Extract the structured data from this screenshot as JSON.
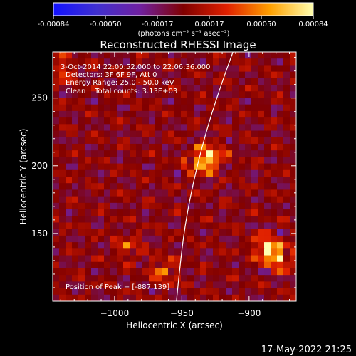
{
  "colorbar": {
    "tick_labels": [
      "-0.00084",
      "-0.00050",
      "-0.00017",
      "0.00017",
      "0.00050",
      "0.00084"
    ],
    "units_label": "(photons cm⁻² s⁻¹ asec⁻²)",
    "colors": [
      "#1212ff",
      "#4030d0",
      "#7020a0",
      "#800000",
      "#e02000",
      "#ffa000",
      "#ffffb0"
    ]
  },
  "info": {
    "time_range": "3-Oct-2014 22:00:52.000 to 22:06:36.000",
    "detectors": "Detectors: 3F 6F 9F, Att 0",
    "energy": "Energy Range: 25.0 - 50.0 keV",
    "algorithm": "Clean    Total counts: 3.13E+03",
    "peak": "Position of Peak = [-887,139]"
  },
  "footer": {
    "date": "17-May-2022 21:25"
  },
  "chart_data": {
    "type": "heatmap",
    "title": "Reconstructed RHESSI Image",
    "xlabel": "Heliocentric X (arcsec)",
    "ylabel": "Heliocentric Y (arcsec)",
    "xlim": [
      -1046,
      -865
    ],
    "ylim": [
      100,
      284
    ],
    "x_ticks": [
      -1000,
      -950,
      -900
    ],
    "y_ticks": [
      150,
      200,
      250
    ],
    "x_tick_labels": [
      "−1000",
      "−950",
      "−900"
    ],
    "y_tick_labels": [
      "150",
      "200",
      "250"
    ],
    "value_range": [
      -0.00084,
      0.00084
    ],
    "sources": [
      {
        "x": -887,
        "y": 139,
        "value": 0.00084
      },
      {
        "x": -877,
        "y": 132,
        "value": 0.00062
      },
      {
        "x": -928,
        "y": 207,
        "value": 0.0007
      },
      {
        "x": -937,
        "y": 202,
        "value": 0.00055
      },
      {
        "x": -964,
        "y": 122,
        "value": 0.00045
      },
      {
        "x": -990,
        "y": 140,
        "value": 0.00035
      },
      {
        "x": -1040,
        "y": 270,
        "value": 0.0004
      }
    ],
    "limb_curve": [
      {
        "x": -912,
        "y": 284
      },
      {
        "x": -920,
        "y": 262
      },
      {
        "x": -930,
        "y": 232
      },
      {
        "x": -940,
        "y": 195
      },
      {
        "x": -948,
        "y": 155
      },
      {
        "x": -952,
        "y": 120
      },
      {
        "x": -954,
        "y": 100
      }
    ]
  }
}
